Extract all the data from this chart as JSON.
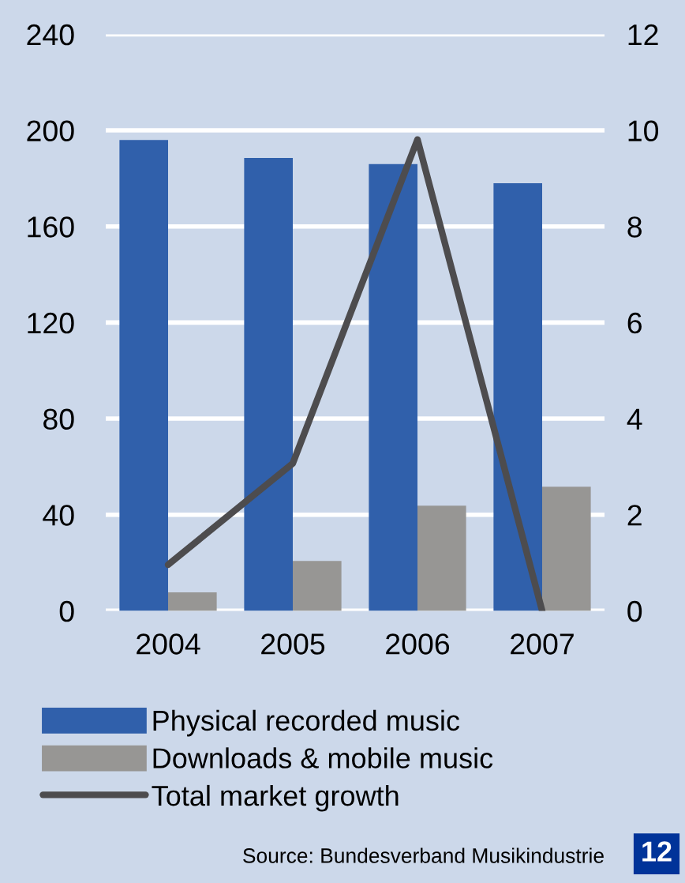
{
  "chart_data": {
    "type": "bar",
    "categories": [
      "2004",
      "2005",
      "2006",
      "2007"
    ],
    "series": [
      {
        "name": "Physical recorded music",
        "color": "#3060ab",
        "values": [
          196,
          188.5,
          186,
          178
        ]
      },
      {
        "name": "Downloads & mobile music",
        "color": "#979694",
        "values": [
          7.7,
          20.8,
          43.8,
          51.7
        ]
      },
      {
        "name": "Total market growth",
        "type": "line",
        "axis": "y2",
        "color": "#4d4c4e",
        "values": [
          0.96,
          3.07,
          9.81,
          0
        ]
      }
    ],
    "ylim": [
      0,
      240
    ],
    "yticks": [
      0,
      40,
      80,
      120,
      160,
      200,
      240
    ],
    "y2lim": [
      0,
      12
    ],
    "y2ticks": [
      0,
      2,
      4,
      6,
      8,
      10,
      12
    ],
    "grid": "y",
    "legend": "bottom",
    "marker": "none",
    "line_style": "solid",
    "annotations": [
      "Source: Bundesverband Musikindustrie",
      "12"
    ]
  }
}
